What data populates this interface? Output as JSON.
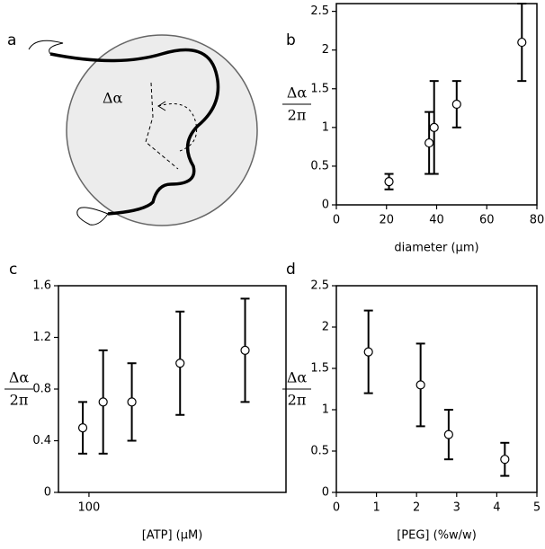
{
  "diagram": {
    "panel": "a",
    "label": "Δα"
  },
  "chart_data": [
    {
      "type": "scatter",
      "panel": "b",
      "xlabel": "diameter (µm)",
      "ylabel": {
        "numerator": "Δα",
        "denominator": "2π"
      },
      "x": [
        21,
        37,
        39,
        48,
        74
      ],
      "values": [
        0.3,
        0.8,
        1.0,
        1.3,
        2.1
      ],
      "errors": [
        0.1,
        0.4,
        0.6,
        0.3,
        0.5
      ],
      "xlim": [
        0,
        80
      ],
      "ylim": [
        0,
        2.6
      ],
      "xticks": [
        0,
        20,
        40,
        60,
        80
      ],
      "yticks": [
        0,
        0.5,
        1,
        1.5,
        2,
        2.5
      ],
      "color": "#000000"
    },
    {
      "type": "scatter",
      "panel": "c",
      "xlabel": "[ATP] (µM)",
      "ylabel": {
        "numerator": "Δα",
        "denominator": "2π"
      },
      "x": [
        93,
        118,
        165,
        290,
        620
      ],
      "values": [
        0.5,
        0.7,
        0.7,
        1.0,
        1.1
      ],
      "errors": [
        0.2,
        0.4,
        0.3,
        0.4,
        0.4
      ],
      "xscale": "log",
      "xlim": [
        70,
        1000
      ],
      "ylim": [
        0,
        1.6
      ],
      "xticks": [
        100
      ],
      "yticks": [
        0,
        0.4,
        0.8,
        1.2,
        1.6
      ],
      "color": "#000000"
    },
    {
      "type": "scatter",
      "panel": "d",
      "xlabel": "[PEG] (%w/w)",
      "ylabel": {
        "numerator": "Δα",
        "denominator": "2π"
      },
      "x": [
        0.8,
        2.1,
        2.8,
        4.2
      ],
      "values": [
        1.7,
        1.3,
        0.7,
        0.4
      ],
      "errors": [
        0.5,
        0.5,
        0.3,
        0.2
      ],
      "xlim": [
        0,
        5
      ],
      "ylim": [
        0,
        2.5
      ],
      "xticks": [
        0,
        1,
        2,
        3,
        4,
        5
      ],
      "yticks": [
        0,
        0.5,
        1,
        1.5,
        2,
        2.5
      ],
      "color": "#000000"
    }
  ]
}
